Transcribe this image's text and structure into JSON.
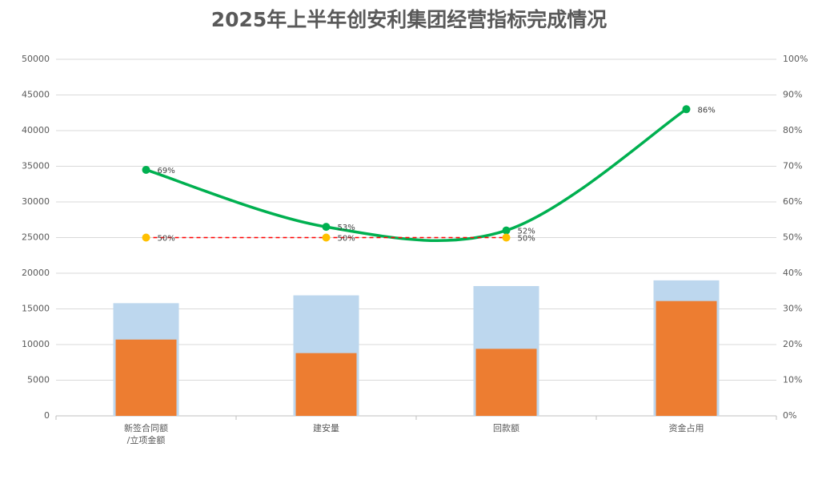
{
  "chart_data": {
    "type": "bar",
    "title": "2025年上半年创安利集团经营指标完成情况",
    "categories": [
      "新签合同额/立项金额",
      "建安量",
      "回款额",
      "资金占用"
    ],
    "series": [
      {
        "type": "bar",
        "color": "#bdd7ee",
        "values": [
          15800,
          16900,
          18200,
          19000
        ]
      },
      {
        "type": "bar",
        "color": "#ed7d31",
        "values": [
          10700,
          8800,
          9400,
          16100
        ]
      },
      {
        "type": "line",
        "axis": "y2",
        "color": "#00b050",
        "values": [
          69,
          53,
          52,
          86
        ],
        "value_labels": [
          "69%",
          "53%",
          "52%",
          "86%"
        ]
      },
      {
        "type": "line",
        "axis": "y2",
        "color": "#ff0000",
        "marker_color": "#ffc000",
        "dashed": true,
        "values": [
          50,
          50,
          50,
          null
        ],
        "value_labels": [
          "50%",
          "50%",
          "50%",
          null
        ]
      }
    ],
    "ylim": [
      0,
      50000
    ],
    "yticks": [
      0,
      5000,
      10000,
      15000,
      20000,
      25000,
      30000,
      35000,
      40000,
      45000,
      50000
    ],
    "y2lim": [
      0,
      100
    ],
    "y2ticks": [
      {
        "value": 0,
        "label": "0%"
      },
      {
        "value": 10,
        "label": "10%"
      },
      {
        "value": 20,
        "label": "20%"
      },
      {
        "value": 30,
        "label": "30%"
      },
      {
        "value": 40,
        "label": "40%"
      },
      {
        "value": 50,
        "label": "50%"
      },
      {
        "value": 60,
        "label": "60%"
      },
      {
        "value": 70,
        "label": "70%"
      },
      {
        "value": 80,
        "label": "80%"
      },
      {
        "value": 90,
        "label": "90%"
      },
      {
        "value": 100,
        "label": "100%"
      }
    ],
    "grid": true
  }
}
